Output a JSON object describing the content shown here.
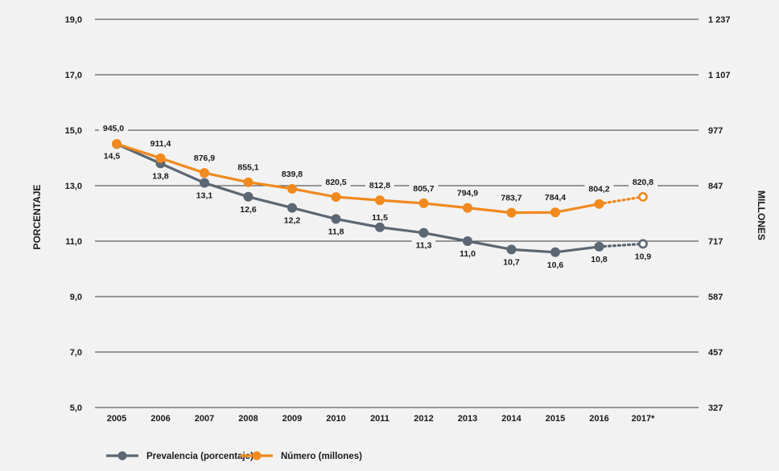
{
  "chart_data": {
    "type": "line",
    "title": "",
    "xlabel": "",
    "ylabel_left": "PORCENTAJE",
    "ylabel_right": "MILLONES",
    "categories": [
      "2005",
      "2006",
      "2007",
      "2008",
      "2009",
      "2010",
      "2011",
      "2012",
      "2013",
      "2014",
      "2015",
      "2016",
      "2017*"
    ],
    "y_left": {
      "ticks": [
        "19,0",
        "17,0",
        "15,0",
        "13,0",
        "11,0",
        "9,0",
        "7,0",
        "5,0"
      ],
      "range": [
        5,
        19
      ]
    },
    "y_right": {
      "ticks": [
        "1 237",
        "1 107",
        "977",
        "847",
        "717",
        "587",
        "457",
        "327"
      ],
      "range": [
        327,
        1237
      ]
    },
    "series": [
      {
        "name": "Prevalencia (porcentaje)",
        "axis": "left",
        "color": "#5b6773",
        "values": [
          14.5,
          13.8,
          13.1,
          12.6,
          12.2,
          11.8,
          11.5,
          11.3,
          11.0,
          10.7,
          10.6,
          10.8,
          10.9
        ],
        "labels": [
          "14,5",
          "13,8",
          "13,1",
          "12,6",
          "12,2",
          "11,8",
          "11,5",
          "11,3",
          "11,0",
          "10,7",
          "10,6",
          "10,8",
          "10,9"
        ],
        "projected_last": true
      },
      {
        "name": "Número (millones)",
        "axis": "right",
        "color": "#f0891e",
        "values": [
          945.0,
          911.4,
          876.9,
          855.1,
          839.8,
          820.5,
          812.8,
          805.7,
          794.9,
          783.7,
          784.4,
          804.2,
          820.8
        ],
        "labels": [
          "945,0",
          "911,4",
          "876,9",
          "855,1",
          "839,8",
          "820,5",
          "812,8",
          "805,7",
          "794,9",
          "783,7",
          "784,4",
          "804,2",
          "820,8"
        ],
        "projected_last": true
      }
    ],
    "grid": true,
    "legend_position": "bottom-left"
  }
}
